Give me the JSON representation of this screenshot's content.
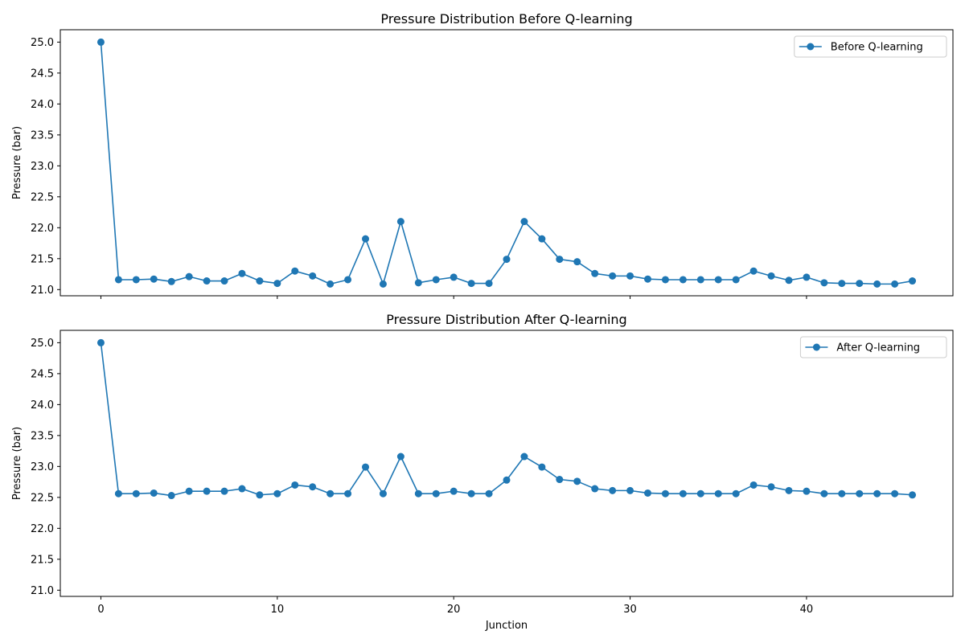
{
  "chart_data": [
    {
      "type": "line",
      "title": "Pressure Distribution Before Q-learning",
      "xlabel": "",
      "ylabel": "Pressure (bar)",
      "xlim": [
        -2.3,
        48.3
      ],
      "ylim": [
        20.9,
        25.2
      ],
      "xticks": [
        0,
        10,
        20,
        30,
        40
      ],
      "yticks": [
        21.0,
        21.5,
        22.0,
        22.5,
        23.0,
        23.5,
        24.0,
        24.5,
        25.0
      ],
      "ytick_labels": [
        "21.0",
        "21.5",
        "22.0",
        "22.5",
        "23.0",
        "23.5",
        "24.0",
        "24.5",
        "25.0"
      ],
      "show_xtick_labels": false,
      "grid": false,
      "legend": "top-right",
      "color": "#1f77b4",
      "series": [
        {
          "name": "Before Q-learning",
          "x": [
            0,
            1,
            2,
            3,
            4,
            5,
            6,
            7,
            8,
            9,
            10,
            11,
            12,
            13,
            14,
            15,
            16,
            17,
            18,
            19,
            20,
            21,
            22,
            23,
            24,
            25,
            26,
            27,
            28,
            29,
            30,
            31,
            32,
            33,
            34,
            35,
            36,
            37,
            38,
            39,
            40,
            41,
            42,
            43,
            44,
            45,
            46
          ],
          "y": [
            25.0,
            21.16,
            21.16,
            21.17,
            21.13,
            21.21,
            21.14,
            21.14,
            21.26,
            21.14,
            21.1,
            21.3,
            21.22,
            21.09,
            21.16,
            21.82,
            21.09,
            22.1,
            21.11,
            21.16,
            21.2,
            21.1,
            21.1,
            21.49,
            22.1,
            21.82,
            21.49,
            21.45,
            21.26,
            21.22,
            21.22,
            21.17,
            21.16,
            21.16,
            21.16,
            21.16,
            21.16,
            21.3,
            21.22,
            21.15,
            21.2,
            21.11,
            21.1,
            21.1,
            21.09,
            21.09,
            21.14
          ]
        }
      ]
    },
    {
      "type": "line",
      "title": "Pressure Distribution After Q-learning",
      "xlabel": "Junction",
      "ylabel": "Pressure (bar)",
      "xlim": [
        -2.3,
        48.3
      ],
      "ylim": [
        20.9,
        25.2
      ],
      "xticks": [
        0,
        10,
        20,
        30,
        40
      ],
      "xtick_labels": [
        "0",
        "10",
        "20",
        "30",
        "40"
      ],
      "yticks": [
        21.0,
        21.5,
        22.0,
        22.5,
        23.0,
        23.5,
        24.0,
        24.5,
        25.0
      ],
      "ytick_labels": [
        "21.0",
        "21.5",
        "22.0",
        "22.5",
        "23.0",
        "23.5",
        "24.0",
        "24.5",
        "25.0"
      ],
      "show_xtick_labels": true,
      "grid": false,
      "legend": "top-right",
      "color": "#1f77b4",
      "series": [
        {
          "name": "After Q-learning",
          "x": [
            0,
            1,
            2,
            3,
            4,
            5,
            6,
            7,
            8,
            9,
            10,
            11,
            12,
            13,
            14,
            15,
            16,
            17,
            18,
            19,
            20,
            21,
            22,
            23,
            24,
            25,
            26,
            27,
            28,
            29,
            30,
            31,
            32,
            33,
            34,
            35,
            36,
            37,
            38,
            39,
            40,
            41,
            42,
            43,
            44,
            45,
            46
          ],
          "y": [
            25.0,
            22.56,
            22.56,
            22.57,
            22.53,
            22.6,
            22.6,
            22.6,
            22.64,
            22.54,
            22.56,
            22.7,
            22.67,
            22.56,
            22.56,
            22.99,
            22.56,
            23.16,
            22.56,
            22.56,
            22.6,
            22.56,
            22.56,
            22.78,
            23.16,
            22.99,
            22.79,
            22.76,
            22.64,
            22.61,
            22.61,
            22.57,
            22.56,
            22.56,
            22.56,
            22.56,
            22.56,
            22.7,
            22.67,
            22.61,
            22.6,
            22.56,
            22.56,
            22.56,
            22.56,
            22.56,
            22.54
          ]
        }
      ]
    }
  ]
}
